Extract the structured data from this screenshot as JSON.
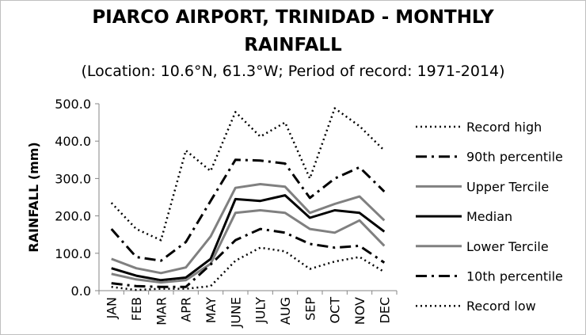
{
  "chart_data": {
    "type": "line",
    "title_line1": "PIARCO AIRPORT, TRINIDAD - MONTHLY",
    "title_line2": "RAINFALL",
    "subtitle": "(Location: 10.6°N, 61.3°W; Period of record: 1971-2014)",
    "xlabel": "",
    "ylabel": "RAINFALL (mm)",
    "ylim": [
      0,
      500
    ],
    "yticks": [
      "0.0",
      "100.0",
      "200.0",
      "300.0",
      "400.0",
      "500.0"
    ],
    "ytick_values": [
      0,
      100,
      200,
      300,
      400,
      500
    ],
    "categories": [
      "JAN",
      "FEB",
      "MAR",
      "APR",
      "MAY",
      "JUNE",
      "JULY",
      "AUG",
      "SEP",
      "OCT",
      "NOV",
      "DEC"
    ],
    "legend_position": "right",
    "grid": false,
    "series": [
      {
        "name": "Record high",
        "color": "#000000",
        "style": "dotted",
        "values": [
          235,
          165,
          135,
          375,
          320,
          478,
          412,
          450,
          300,
          488,
          440,
          375
        ]
      },
      {
        "name": "90th percentile",
        "color": "#000000",
        "style": "dashdot",
        "values": [
          165,
          90,
          80,
          130,
          240,
          350,
          348,
          340,
          248,
          300,
          330,
          265
        ]
      },
      {
        "name": "Upper Tercile",
        "color": "#808080",
        "style": "solid",
        "values": [
          85,
          60,
          47,
          62,
          145,
          275,
          285,
          278,
          208,
          232,
          252,
          188
        ]
      },
      {
        "name": "Median",
        "color": "#000000",
        "style": "solid",
        "values": [
          60,
          40,
          28,
          35,
          85,
          245,
          240,
          255,
          195,
          215,
          208,
          158
        ]
      },
      {
        "name": "Lower Tercile",
        "color": "#808080",
        "style": "solid",
        "values": [
          45,
          30,
          22,
          28,
          72,
          208,
          215,
          208,
          165,
          155,
          188,
          120
        ]
      },
      {
        "name": "10th percentile",
        "color": "#000000",
        "style": "dashdot",
        "values": [
          20,
          12,
          10,
          10,
          70,
          135,
          165,
          155,
          125,
          115,
          120,
          75
        ]
      },
      {
        "name": "Record low",
        "color": "#000000",
        "style": "dotted",
        "values": [
          10,
          2,
          5,
          5,
          12,
          80,
          115,
          105,
          58,
          78,
          90,
          50
        ]
      }
    ]
  }
}
